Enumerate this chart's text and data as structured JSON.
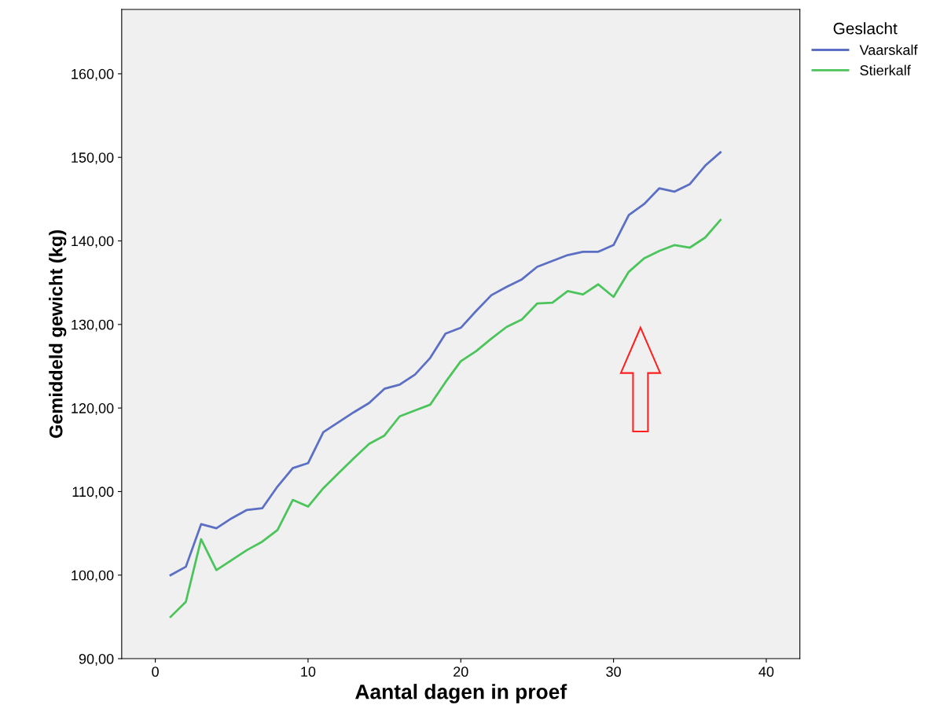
{
  "chart_data": {
    "type": "line",
    "xlabel": "Aantal dagen in proef",
    "ylabel": "Gemiddeld gewicht (kg)",
    "legend_title": "Geslacht",
    "legend": "top right",
    "grid": false,
    "marker": "none",
    "line_style": "solid",
    "x": [
      1,
      2,
      3,
      4,
      5,
      6,
      7,
      8,
      9,
      10,
      11,
      12,
      13,
      14,
      15,
      16,
      17,
      18,
      19,
      20,
      21,
      22,
      23,
      24,
      25,
      26,
      27,
      28,
      29,
      30,
      31,
      32,
      33,
      34,
      35,
      36,
      37
    ],
    "series": [
      {
        "name": "Vaarskalf",
        "color": "#5b6fc4",
        "values": [
          100.0,
          101.0,
          106.1,
          105.6,
          106.8,
          107.8,
          108.0,
          110.6,
          112.8,
          113.4,
          117.1,
          118.3,
          119.5,
          120.6,
          122.3,
          122.8,
          124.0,
          126.0,
          128.9,
          129.6,
          131.6,
          133.5,
          134.5,
          135.4,
          136.9,
          137.6,
          138.3,
          138.7,
          138.7,
          139.5,
          143.1,
          144.4,
          146.3,
          145.9,
          146.8,
          149.0,
          150.6
        ]
      },
      {
        "name": "Stierkalf",
        "color": "#4cc45c",
        "values": [
          95.0,
          96.8,
          104.3,
          100.6,
          101.8,
          103.0,
          104.0,
          105.4,
          109.0,
          108.2,
          110.4,
          112.2,
          114.0,
          115.7,
          116.7,
          119.0,
          119.7,
          120.4,
          123.1,
          125.6,
          126.8,
          128.3,
          129.7,
          130.6,
          132.5,
          132.6,
          134.0,
          133.6,
          134.8,
          133.3,
          136.3,
          137.9,
          138.8,
          139.5,
          139.2,
          140.4,
          142.5
        ]
      }
    ],
    "xlim": [
      -2.2,
      42.2
    ],
    "xticks": [
      0,
      10,
      20,
      30,
      40
    ],
    "ylim": [
      90,
      167.7
    ],
    "yticks": [
      {
        "value": 90,
        "label": "90,00"
      },
      {
        "value": 100,
        "label": "100,00"
      },
      {
        "value": 110,
        "label": "110,00"
      },
      {
        "value": 120,
        "label": "120,00"
      },
      {
        "value": 130,
        "label": "130,00"
      },
      {
        "value": 140,
        "label": "140,00"
      },
      {
        "value": 150,
        "label": "150,00"
      },
      {
        "value": 160,
        "label": "160,00"
      }
    ]
  }
}
